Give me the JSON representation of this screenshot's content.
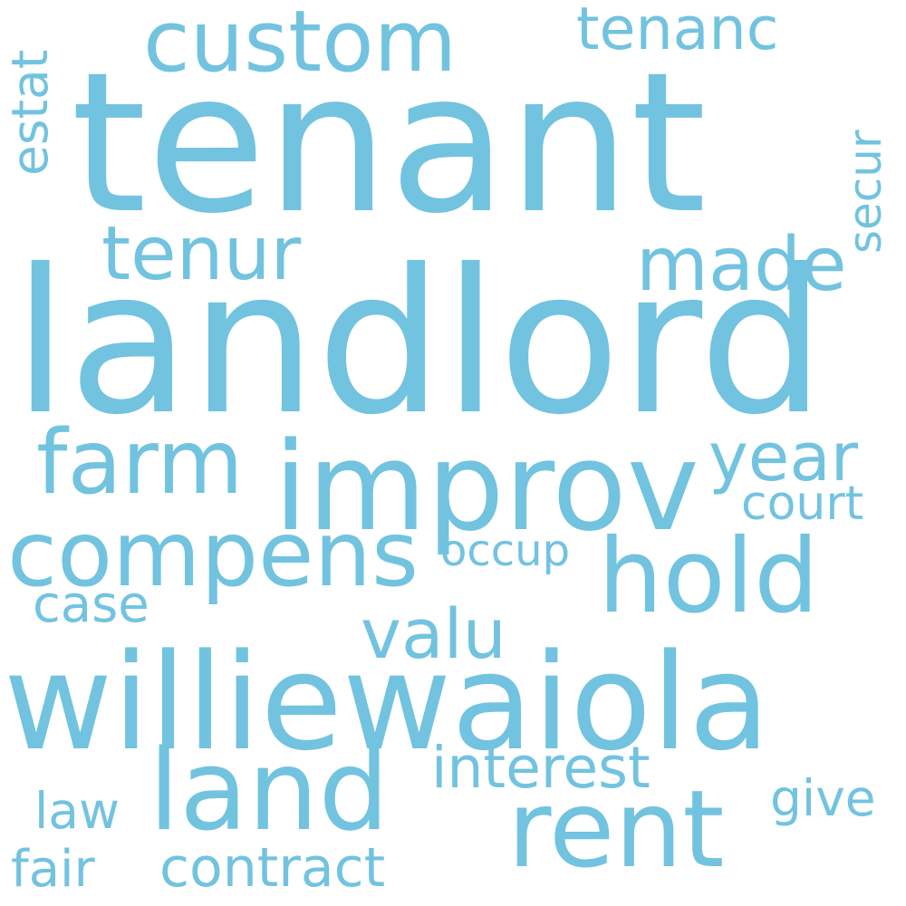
{
  "word_cloud": {
    "color": "#72c3e0",
    "background": "#ffffff",
    "words": [
      "tenant",
      "landlord",
      "williewaiola",
      "improv",
      "compens",
      "custom",
      "hold",
      "land",
      "rent",
      "farm",
      "tenur",
      "made",
      "valu",
      "year",
      "tenanc",
      "interest",
      "contract",
      "estat",
      "secur",
      "court",
      "occup",
      "case",
      "law",
      "give",
      "fair"
    ]
  }
}
